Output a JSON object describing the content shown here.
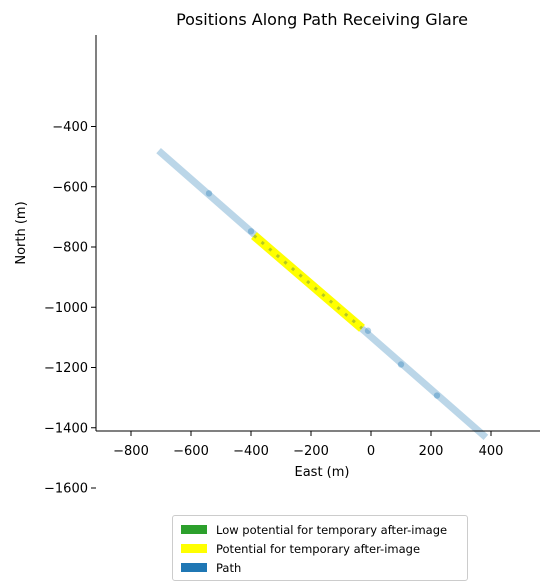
{
  "chart_data": {
    "type": "line",
    "title": "Positions Along Path Receiving Glare",
    "xlabel": "East (m)",
    "ylabel": "North (m)",
    "xlim": [
      -920,
      560
    ],
    "ylim": [
      -1620,
      -290
    ],
    "xticks": [
      -800,
      -600,
      -400,
      -200,
      0,
      200,
      400
    ],
    "yticks": [
      -400,
      -600,
      -800,
      -1000,
      -1200,
      -1400,
      -1600
    ],
    "grid": false,
    "legend_position": "bottom-center",
    "series": [
      {
        "name": "Path",
        "color": "#1f77b4",
        "x": [
          -708,
          383
        ],
        "y": [
          -480,
          -1432
        ],
        "vertices": {
          "x": [
            -540,
            -400,
            -10,
            100,
            220
          ],
          "y": [
            -622,
            -748,
            -1078,
            -1190,
            -1293
          ]
        }
      },
      {
        "name": "Potential for temporary after-image",
        "color": "#ffff00",
        "x": [
          -390,
          -30
        ],
        "y": [
          -762,
          -1070
        ]
      },
      {
        "name": "Low potential for temporary after-image",
        "color": "#2ca02c",
        "x": [],
        "y": []
      }
    ],
    "legend": [
      {
        "label": "Low potential for temporary after-image",
        "color": "#2ca02c"
      },
      {
        "label": "Potential for temporary after-image",
        "color": "#ffff00"
      },
      {
        "label": "Path",
        "color": "#1f77b4"
      }
    ]
  }
}
